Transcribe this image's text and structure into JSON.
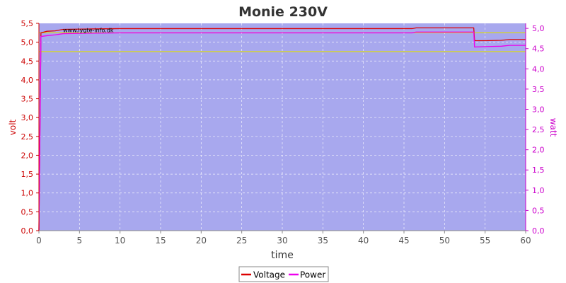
{
  "chart_data": {
    "type": "line",
    "title": "Monie 230V",
    "xlabel": "time",
    "ylabel": "volt",
    "y2label": "watt",
    "watermark": "www.lygte-info.dk",
    "xlim": [
      0,
      60
    ],
    "ylim": [
      0,
      5.5
    ],
    "y2lim": [
      0,
      5.125
    ],
    "x_ticks": [
      "0",
      "5",
      "10",
      "15",
      "20",
      "25",
      "30",
      "35",
      "40",
      "45",
      "50",
      "55",
      "60"
    ],
    "y_ticks": [
      "0,0",
      "0,5",
      "1,0",
      "1,5",
      "2,0",
      "2,5",
      "3,0",
      "3,5",
      "4,0",
      "4,5",
      "5,0",
      "5,5"
    ],
    "y2_ticks": [
      "0,0",
      "0,5",
      "1,0",
      "1,5",
      "2,0",
      "2,5",
      "3,0",
      "3,5",
      "4,0",
      "4,5",
      "5,0"
    ],
    "grid": true,
    "legend_position": "bottom-center",
    "colors": {
      "plot_bg": "#a8a8ee",
      "voltage": "#dd0000",
      "power": "#ee00ee",
      "limit_lines": "#dddd00",
      "left_axis": "#cc0000",
      "right_axis": "#cc00cc"
    },
    "reference_lines": [
      4.75,
      5.25
    ],
    "series": [
      {
        "name": "Voltage",
        "axis": "left",
        "points": [
          [
            0,
            0
          ],
          [
            0.1,
            2.1
          ],
          [
            0.25,
            5.25
          ],
          [
            1,
            5.29
          ],
          [
            2,
            5.3
          ],
          [
            3,
            5.34
          ],
          [
            6,
            5.35
          ],
          [
            10,
            5.36
          ],
          [
            20,
            5.36
          ],
          [
            30,
            5.36
          ],
          [
            40,
            5.36
          ],
          [
            46,
            5.36
          ],
          [
            46.5,
            5.38
          ],
          [
            50,
            5.38
          ],
          [
            53.6,
            5.38
          ],
          [
            53.7,
            5.04
          ],
          [
            55,
            5.04
          ],
          [
            57,
            5.05
          ],
          [
            58,
            5.07
          ],
          [
            60,
            5.07
          ]
        ]
      },
      {
        "name": "Power",
        "axis": "right",
        "points": [
          [
            0,
            0
          ],
          [
            0.1,
            1.8
          ],
          [
            0.25,
            4.8
          ],
          [
            1,
            4.82
          ],
          [
            2,
            4.84
          ],
          [
            3,
            4.87
          ],
          [
            6,
            4.88
          ],
          [
            10,
            4.89
          ],
          [
            20,
            4.89
          ],
          [
            30,
            4.89
          ],
          [
            40,
            4.89
          ],
          [
            46,
            4.89
          ],
          [
            46.5,
            4.91
          ],
          [
            50,
            4.91
          ],
          [
            53.6,
            4.91
          ],
          [
            53.7,
            4.54
          ],
          [
            55,
            4.55
          ],
          [
            57,
            4.56
          ],
          [
            58,
            4.58
          ],
          [
            60,
            4.58
          ]
        ]
      }
    ]
  }
}
